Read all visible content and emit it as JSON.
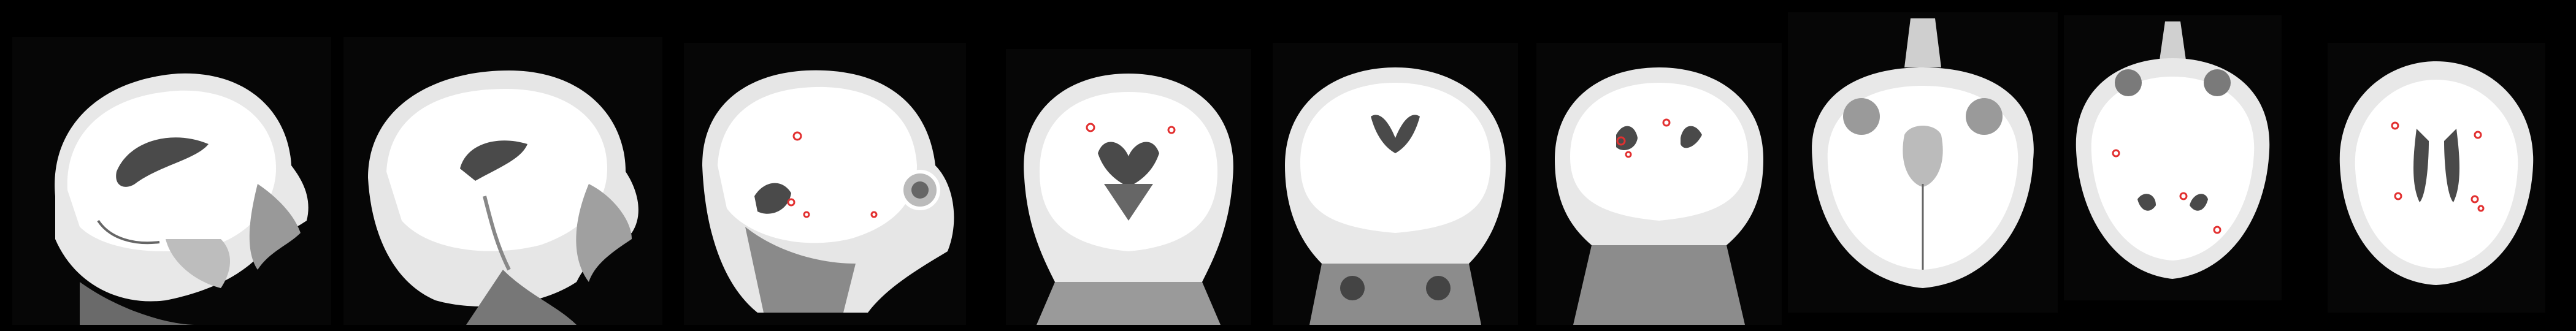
{
  "figure": {
    "description_hidden": "",
    "background_color": "#000000",
    "lesion_marker_color": "#e23030",
    "tissue_color": "#f2f2f2",
    "csf_color": "#3a3a3a",
    "slices": [
      {
        "plane": "sagittal",
        "index": 1,
        "lesions": 0
      },
      {
        "plane": "sagittal",
        "index": 2,
        "lesions": 0
      },
      {
        "plane": "sagittal",
        "index": 3,
        "lesions": 4
      },
      {
        "plane": "coronal",
        "index": 1,
        "lesions": 2
      },
      {
        "plane": "coronal",
        "index": 2,
        "lesions": 0
      },
      {
        "plane": "coronal",
        "index": 3,
        "lesions": 3
      },
      {
        "plane": "axial",
        "index": 1,
        "lesions": 0
      },
      {
        "plane": "axial",
        "index": 2,
        "lesions": 3
      },
      {
        "plane": "axial",
        "index": 3,
        "lesions": 5
      }
    ]
  }
}
